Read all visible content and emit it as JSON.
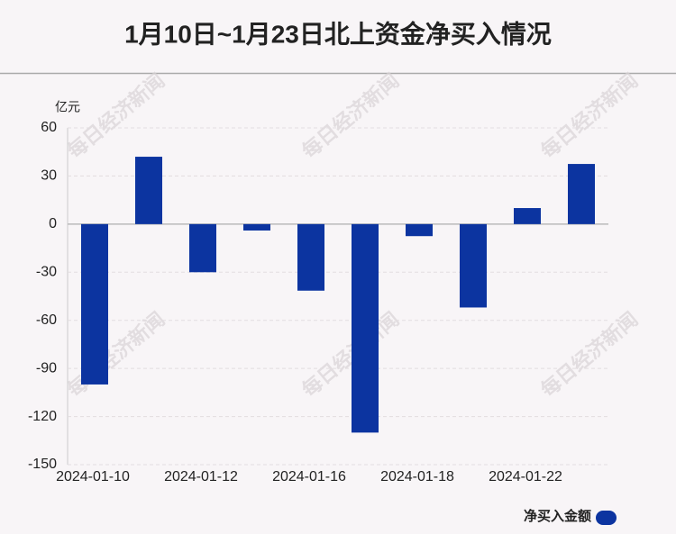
{
  "chart_data": {
    "type": "bar",
    "title": "1月10日~1月23日北上资金净买入情况",
    "y_label": "亿元",
    "watermark": "每日经济新闻",
    "categories": [
      "2024-01-10",
      null,
      "2024-01-12",
      null,
      "2024-01-16",
      null,
      "2024-01-18",
      null,
      "2024-01-22",
      null
    ],
    "series": [
      {
        "name": "净买入金额",
        "color": "#0c34a0",
        "values": [
          -100,
          42,
          -30,
          -4,
          -41.5,
          -130,
          -7.5,
          -52,
          10,
          37.5
        ]
      }
    ],
    "ylim": [
      -150,
      60
    ],
    "yticks": [
      -150,
      -120,
      -90,
      -60,
      -30,
      0,
      30,
      60
    ],
    "grid": true,
    "legend": "bottom-right"
  }
}
